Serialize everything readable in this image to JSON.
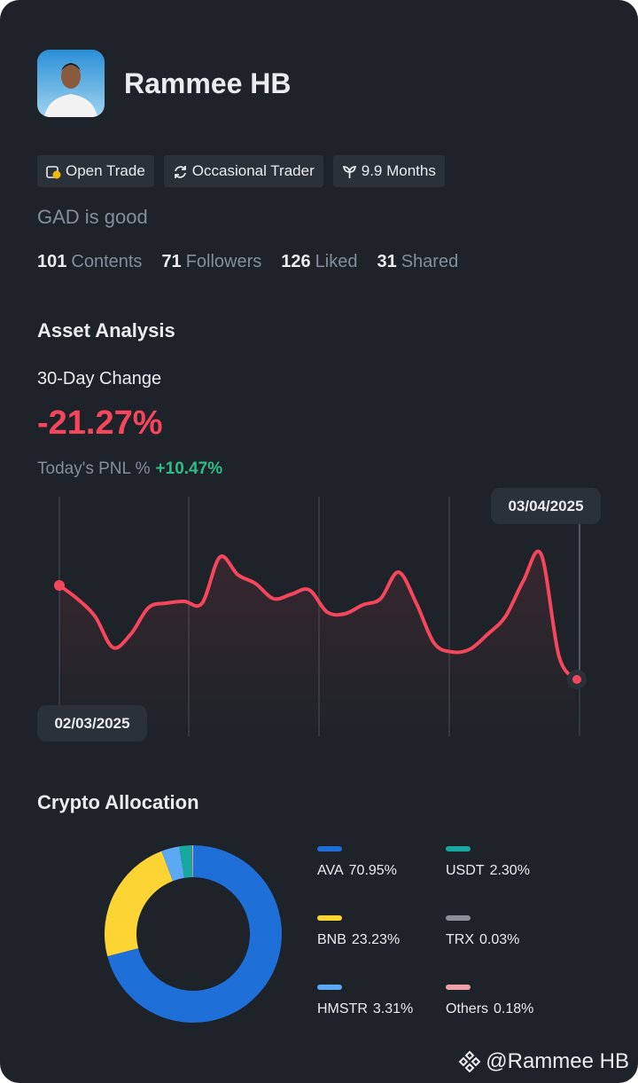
{
  "profile": {
    "name": "Rammee HB",
    "tags": [
      "Open Trade",
      "Occasional Trader",
      "9.9 Months"
    ],
    "bio": "GAD is good",
    "stats": [
      {
        "value": 101,
        "label": "Contents"
      },
      {
        "value": 71,
        "label": "Followers"
      },
      {
        "value": 126,
        "label": "Liked"
      },
      {
        "value": 31,
        "label": "Shared"
      }
    ]
  },
  "asset_analysis": {
    "title": "Asset Analysis",
    "change_label": "30-Day Change",
    "change": "-21.27%",
    "pnl_label": "Today's PNL %",
    "pnl": "+10.47%"
  },
  "allocation_title": "Crypto Allocation",
  "footer": "@Rammee HB",
  "chart_data": [
    {
      "type": "line",
      "color": "#f6465d",
      "ylim": [
        0,
        100
      ],
      "categories": [
        "02/03/2025",
        null,
        null,
        null,
        null,
        null,
        null,
        null,
        null,
        null,
        null,
        null,
        null,
        null,
        null,
        null,
        null,
        null,
        null,
        null,
        null,
        null,
        null,
        null,
        null,
        null,
        null,
        null,
        null,
        "03/04/2025"
      ],
      "values": [
        70,
        62.5,
        52.5,
        35,
        42.5,
        57.5,
        60,
        61,
        60,
        86,
        76,
        71,
        62.5,
        65,
        67.5,
        55,
        54,
        59,
        62.5,
        77.5,
        60,
        37.5,
        32.5,
        34,
        42.5,
        52.5,
        72.5,
        87.5,
        30,
        17
      ]
    },
    {
      "type": "pie",
      "categories": [
        "AVA",
        "BNB",
        "HMSTR",
        "USDT",
        "TRX",
        "Others"
      ],
      "values": [
        70.95,
        23.23,
        3.31,
        2.3,
        0.03,
        0.18
      ],
      "value_labels": [
        "70.95%",
        "23.23%",
        "3.31%",
        "2.30%",
        "0.03%",
        "0.18%"
      ],
      "colors": [
        "#1f6fd8",
        "#fcd535",
        "#5ba8f5",
        "#17a8a0",
        "#8a8f99",
        "#f0a0a8"
      ]
    }
  ]
}
